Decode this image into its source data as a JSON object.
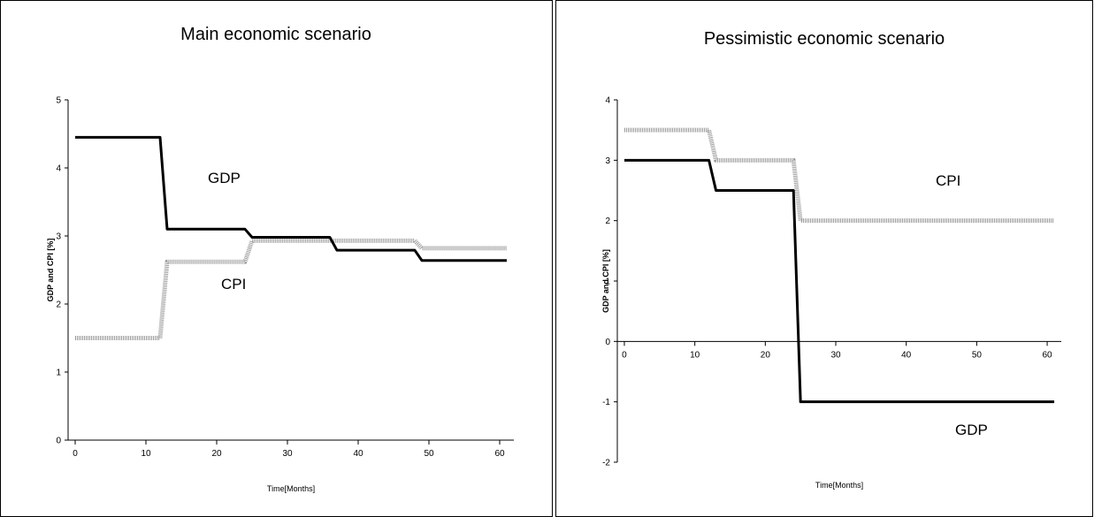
{
  "chart_data": [
    {
      "type": "line",
      "title": "Main economic scenario",
      "x_label": "Time[Months]",
      "y_label": "GDP and CPI [%]",
      "x": [
        0,
        12,
        13,
        24,
        25,
        36,
        37,
        48,
        49,
        61
      ],
      "series": [
        {
          "name": "GDP",
          "color": "#000000",
          "values": [
            4.45,
            4.45,
            3.1,
            3.1,
            2.98,
            2.98,
            2.79,
            2.79,
            2.64,
            2.64
          ]
        },
        {
          "name": "CPI",
          "color": "#9a9a9a",
          "values": [
            1.5,
            1.5,
            2.62,
            2.62,
            2.93,
            2.93,
            2.93,
            2.93,
            2.82,
            2.82
          ]
        }
      ],
      "annotations": [
        "GDP",
        "CPI"
      ],
      "xlim": [
        -1,
        62
      ],
      "xticks": [
        0,
        10,
        20,
        30,
        40,
        50,
        60
      ],
      "ylim": [
        0,
        5
      ],
      "yticks": [
        0,
        1,
        2,
        3,
        4,
        5
      ],
      "grid": false
    },
    {
      "type": "line",
      "title": "Pessimistic economic scenario",
      "x_label": "Time[Months]",
      "y_label": "GDP and CPI [%]",
      "x": [
        0,
        12,
        13,
        24,
        25,
        61
      ],
      "series": [
        {
          "name": "GDP",
          "color": "#000000",
          "values": [
            3,
            3,
            2.5,
            2.5,
            -1,
            -1
          ]
        },
        {
          "name": "CPI",
          "color": "#9a9a9a",
          "values": [
            3.5,
            3.5,
            3,
            3,
            2,
            2
          ]
        }
      ],
      "annotations": [
        "CPI",
        "GDP"
      ],
      "xlim": [
        -1,
        62
      ],
      "xticks": [
        0,
        10,
        20,
        30,
        40,
        50,
        60
      ],
      "ylim": [
        -2,
        4
      ],
      "yticks": [
        -2,
        -1,
        0,
        1,
        2,
        3,
        4
      ],
      "grid": false
    }
  ]
}
